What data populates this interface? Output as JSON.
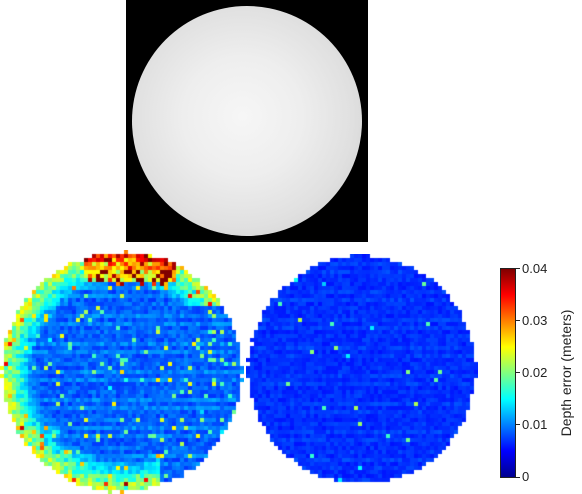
{
  "colorbar": {
    "title": "Depth error (meters)",
    "ticks": [
      "0.04",
      "0.03",
      "0.02",
      "0.01",
      "0"
    ],
    "range": [
      0,
      0.04
    ],
    "colormap": "jet"
  },
  "panels": {
    "top": "rendered sphere depth image",
    "bottom_left": "depth error map (higher error)",
    "bottom_right": "depth error map (lower error)"
  }
}
